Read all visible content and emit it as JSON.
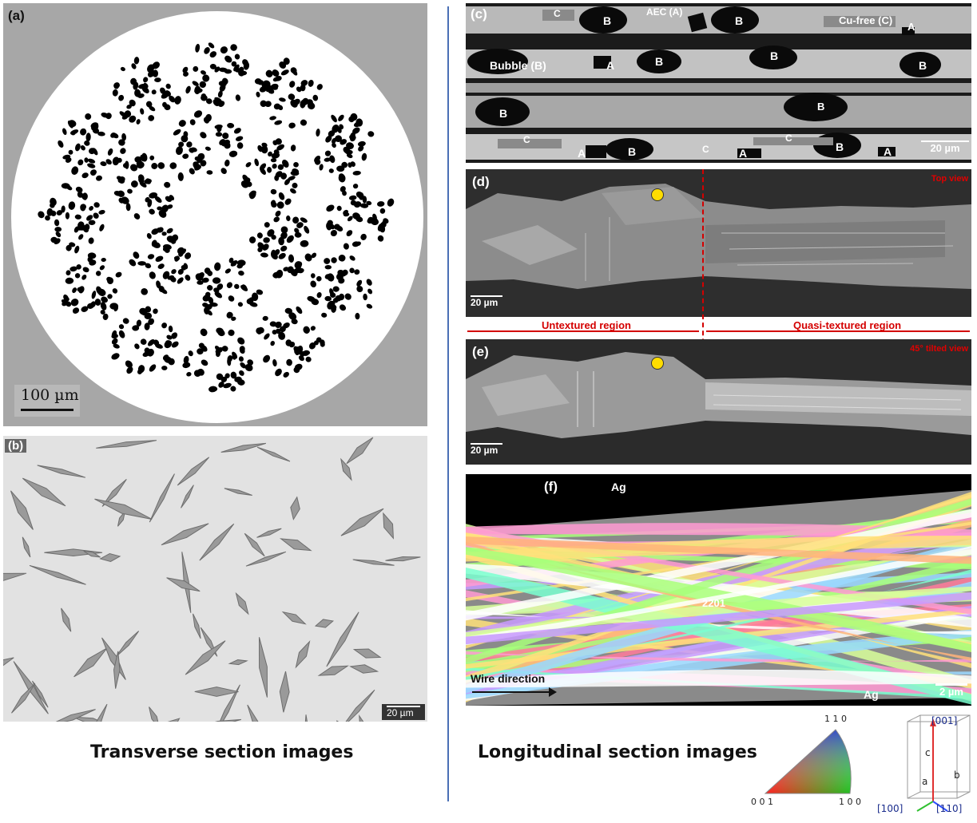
{
  "panels": {
    "a": {
      "label": "(a)",
      "scale": "100 µm"
    },
    "b": {
      "label": "(b)",
      "scale": "20 µm"
    },
    "c": {
      "label": "(c)",
      "scale": "20 µm",
      "annotations": {
        "aec": "AEC (A)",
        "cufree": "Cu-free (C)",
        "bubble": "Bubble (B)",
        "A": "A",
        "B": "B",
        "C": "C"
      }
    },
    "d": {
      "label": "(d)",
      "scale": "20 µm",
      "view": "Top view"
    },
    "e": {
      "label": "(e)",
      "scale": "20 µm",
      "view": "45° tilted view"
    },
    "f": {
      "label": "(f)",
      "scale": "2 µm",
      "ag": "Ag",
      "phase": "2201",
      "direction": "Wire direction"
    }
  },
  "regions": {
    "untextured": "Untextured region",
    "quasi": "Quasi-textured region"
  },
  "captions": {
    "transverse": "Transverse section images",
    "longitudinal": "Longitudinal section images"
  },
  "ipf_legend": {
    "top": "1 1 0",
    "bottom_left": "0 0 1",
    "bottom_right": "1 0 0"
  },
  "crystal_axes": {
    "c001": "[001]",
    "a100": "[100]",
    "b110": "[110]",
    "c": "c",
    "a": "a",
    "b": "b"
  },
  "colors": {
    "divider": "#4a6fb5",
    "region_marker": "#d40000",
    "marker_dot": "#ffdd00"
  }
}
